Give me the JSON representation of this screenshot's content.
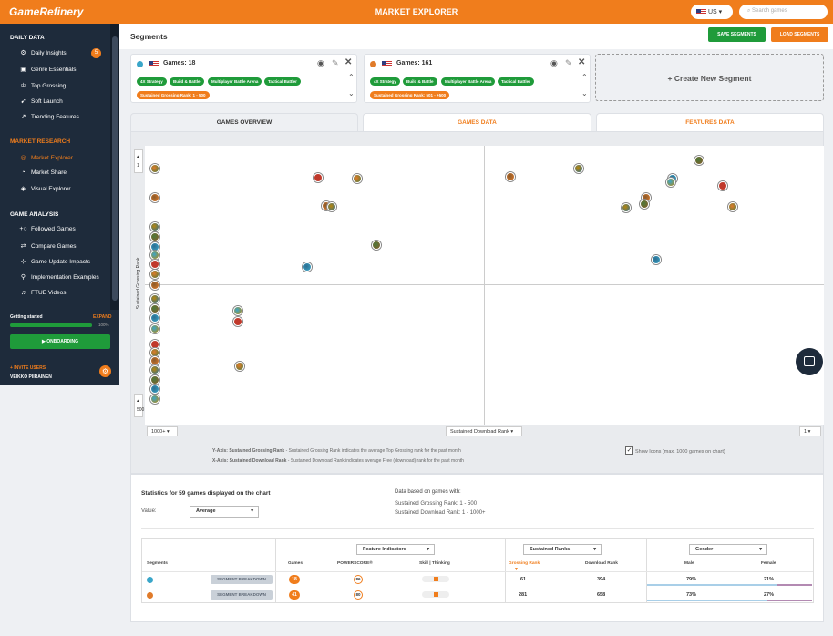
{
  "app": {
    "logo": "GameRefinery",
    "title": "MARKET EXPLORER",
    "country": "US",
    "search_placeholder": "Search games"
  },
  "sidebar": {
    "daily_data": "DAILY DATA",
    "daily_items": [
      {
        "label": "Daily Insights",
        "icon": "insights-icon",
        "badge": "5"
      },
      {
        "label": "Genre Essentials",
        "icon": "genre-icon"
      },
      {
        "label": "Top Grossing",
        "icon": "trophy-icon"
      },
      {
        "label": "Soft Launch",
        "icon": "rocket-icon"
      },
      {
        "label": "Trending Features",
        "icon": "trend-icon"
      }
    ],
    "market_research": "MARKET RESEARCH",
    "market_items": [
      {
        "label": "Market Explorer",
        "icon": "explorer-icon",
        "active": true
      },
      {
        "label": "Market Share",
        "icon": "pie-icon"
      },
      {
        "label": "Visual Explorer",
        "icon": "visual-icon"
      }
    ],
    "game_analysis": "GAME ANALYSIS",
    "analysis_items": [
      {
        "label": "Followed Games",
        "icon": "follow-icon"
      },
      {
        "label": "Compare Games",
        "icon": "compare-icon"
      },
      {
        "label": "Game Update Impacts",
        "icon": "update-icon"
      },
      {
        "label": "Implementation Examples",
        "icon": "examples-icon"
      },
      {
        "label": "FTUE Videos",
        "icon": "video-icon"
      }
    ],
    "getting_started": "Getting started",
    "expand": "EXPAND",
    "progress_label": "100%",
    "progress": 1.0,
    "onboarding": "ONBOARDING",
    "invite": "+ INVITE USERS",
    "user": "VEIKKO PIIRAINEN"
  },
  "segments": {
    "title": "Segments",
    "save": "SAVE SEGMENTS",
    "load": "LOAD SEGMENTS",
    "create": "+  Create New Segment",
    "cards": [
      {
        "label": "Games: 18",
        "color": "#3aa6c9",
        "tags": [
          "4X Strategy",
          "Build & Battle",
          "Multiplayer Battle Arena",
          "Tactical Battler"
        ],
        "rank_tag": "Sustained Grossing Rank: 1 - 500"
      },
      {
        "label": "Games: 161",
        "color": "#e07b2a",
        "tags": [
          "4X Strategy",
          "Build & Battle",
          "Multiplayer Battle Arena",
          "Tactical Battler"
        ],
        "rank_tag": "Sustained Grossing Rank: 501 - +500"
      }
    ]
  },
  "tabs": [
    "GAMES OVERVIEW",
    "GAMES DATA",
    "FEATURES DATA"
  ],
  "chart": {
    "y_axis_label": "Sustained Grossing Rank",
    "y_top": "1",
    "y_bottom": "500",
    "x_left": "1000+",
    "x_label": "Sustained Download Rank",
    "x_right": "1",
    "y_desc_key": "Y-Axis: Sustained Grossing Rank",
    "y_desc": " - Sustained Grossing Rank indicates the average Top Grossing rank for the past month",
    "x_desc_key": "X-Axis: Sustained Download Rank",
    "x_desc": " - Sustained Download Rank indicates average Free (download) rank for the past month",
    "show_icons": "Show Icons (max. 1000 games on chart)"
  },
  "stats": {
    "title": "Statistics for 59 games displayed on the chart",
    "value_label": "Value:",
    "value_option": "Average",
    "based_title": "Data based on games with:",
    "based_line1": "Sustained Grossing Rank: 1 - 500",
    "based_line2": "Sustained Download Rank: 1 - 1000+",
    "feature_indicators": "Feature Indicators",
    "sustained_ranks": "Sustained Ranks",
    "gender": "Gender",
    "col_segments": "Segments",
    "col_games": "Games",
    "col_powerscore": "POWERSCORE®",
    "col_skill": "Skill | Thinking",
    "col_grossing": "Grossing Rank",
    "col_download": "Download Rank",
    "col_male": "Male",
    "col_female": "Female",
    "breakdown_label": "SEGMENT BREAKDOWN",
    "rows": [
      {
        "color": "#3aa6c9",
        "games": "18",
        "power": "86",
        "grossing": "61",
        "download": "394",
        "male": "79%",
        "female": "21%"
      },
      {
        "color": "#e07b2a",
        "games": "41",
        "power": "80",
        "grossing": "281",
        "download": "658",
        "male": "73%",
        "female": "27%"
      }
    ]
  }
}
